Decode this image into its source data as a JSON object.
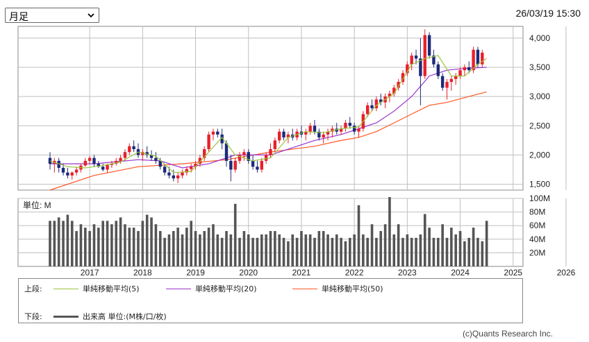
{
  "period_select": {
    "value": "月足",
    "options": [
      "月足"
    ]
  },
  "timestamp": "26/03/19 15:30",
  "copyright": "(c)Quants Research Inc.",
  "colors": {
    "up": "#e8202a",
    "down": "#1c2a7a",
    "ma5": "#9bc53d",
    "ma20": "#9932cc",
    "ma50": "#ff5522",
    "volume": "#555555",
    "grid": "#bfbfbf"
  },
  "legend": {
    "upper_label": "上段:",
    "lower_label": "下段:",
    "ma5": "単純移動平均(5)",
    "ma20": "単純移動平均(20)",
    "ma50": "単純移動平均(50)",
    "volume": "出来高 単位:(M株/口/枚)"
  },
  "chart_data": [
    {
      "type": "candlestick",
      "title": "",
      "x_tick_labels": [
        "2017",
        "2018",
        "2019",
        "2020",
        "2021",
        "2022",
        "2023",
        "2024",
        "2025",
        "2026"
      ],
      "y_tick_labels": [
        "4,000",
        "3,500",
        "3,000",
        "2,500",
        "2,000",
        "1,500"
      ],
      "ylim": [
        1400,
        4200
      ],
      "grid": true,
      "start": "2016-04",
      "ohlc": [
        [
          1950,
          2050,
          1750,
          1850
        ],
        [
          1850,
          1950,
          1700,
          1900
        ],
        [
          1900,
          1950,
          1700,
          1780
        ],
        [
          1780,
          1850,
          1650,
          1700
        ],
        [
          1700,
          1780,
          1600,
          1650
        ],
        [
          1650,
          1720,
          1580,
          1700
        ],
        [
          1700,
          1800,
          1650,
          1750
        ],
        [
          1750,
          1850,
          1700,
          1820
        ],
        [
          1820,
          1950,
          1800,
          1900
        ],
        [
          1900,
          1980,
          1850,
          1950
        ],
        [
          1950,
          2000,
          1800,
          1850
        ],
        [
          1850,
          1900,
          1780,
          1800
        ],
        [
          1800,
          1850,
          1720,
          1750
        ],
        [
          1750,
          1850,
          1700,
          1830
        ],
        [
          1830,
          1900,
          1780,
          1850
        ],
        [
          1850,
          1950,
          1820,
          1900
        ],
        [
          1900,
          2000,
          1850,
          1950
        ],
        [
          1950,
          2100,
          1900,
          2050
        ],
        [
          2050,
          2200,
          2000,
          2150
        ],
        [
          2150,
          2250,
          2050,
          2100
        ],
        [
          2100,
          2200,
          1950,
          2000
        ],
        [
          2000,
          2100,
          1900,
          2050
        ],
        [
          2050,
          2150,
          1950,
          2000
        ],
        [
          2000,
          2080,
          1900,
          1950
        ],
        [
          1950,
          2050,
          1850,
          1900
        ],
        [
          1900,
          1950,
          1750,
          1800
        ],
        [
          1800,
          1850,
          1650,
          1700
        ],
        [
          1700,
          1800,
          1600,
          1650
        ],
        [
          1650,
          1750,
          1550,
          1600
        ],
        [
          1600,
          1700,
          1520,
          1650
        ],
        [
          1650,
          1750,
          1600,
          1700
        ],
        [
          1700,
          1800,
          1650,
          1760
        ],
        [
          1760,
          1850,
          1700,
          1800
        ],
        [
          1800,
          1900,
          1750,
          1850
        ],
        [
          1850,
          2000,
          1800,
          1950
        ],
        [
          1950,
          2150,
          1900,
          2100
        ],
        [
          2100,
          2400,
          2050,
          2350
        ],
        [
          2350,
          2450,
          2250,
          2400
        ],
        [
          2400,
          2450,
          2300,
          2350
        ],
        [
          2350,
          2450,
          2100,
          2200
        ],
        [
          2200,
          2250,
          1800,
          1900
        ],
        [
          1900,
          2000,
          1550,
          1750
        ],
        [
          1750,
          1950,
          1700,
          1900
        ],
        [
          1900,
          2050,
          1850,
          2000
        ],
        [
          2000,
          2100,
          1900,
          2050
        ],
        [
          2050,
          2100,
          1850,
          1900
        ],
        [
          1900,
          2000,
          1750,
          1800
        ],
        [
          1800,
          1900,
          1700,
          1750
        ],
        [
          1750,
          1950,
          1700,
          1900
        ],
        [
          1900,
          2050,
          1850,
          2000
        ],
        [
          2000,
          2200,
          1950,
          2100
        ],
        [
          2100,
          2300,
          2050,
          2250
        ],
        [
          2250,
          2450,
          2200,
          2400
        ],
        [
          2400,
          2450,
          2250,
          2300
        ],
        [
          2300,
          2400,
          2200,
          2350
        ],
        [
          2350,
          2450,
          2250,
          2300
        ],
        [
          2300,
          2450,
          2250,
          2400
        ],
        [
          2400,
          2500,
          2300,
          2350
        ],
        [
          2350,
          2450,
          2250,
          2400
        ],
        [
          2400,
          2550,
          2350,
          2500
        ],
        [
          2500,
          2600,
          2350,
          2400
        ],
        [
          2400,
          2450,
          2250,
          2300
        ],
        [
          2300,
          2400,
          2200,
          2350
        ],
        [
          2350,
          2450,
          2250,
          2400
        ],
        [
          2400,
          2500,
          2300,
          2450
        ],
        [
          2450,
          2550,
          2350,
          2400
        ],
        [
          2400,
          2500,
          2350,
          2450
        ],
        [
          2450,
          2600,
          2400,
          2550
        ],
        [
          2550,
          2650,
          2450,
          2500
        ],
        [
          2500,
          2550,
          2350,
          2400
        ],
        [
          2400,
          2500,
          2300,
          2450
        ],
        [
          2450,
          2750,
          2400,
          2700
        ],
        [
          2700,
          2900,
          2650,
          2850
        ],
        [
          2850,
          2950,
          2750,
          2800
        ],
        [
          2800,
          3000,
          2750,
          2950
        ],
        [
          2950,
          3050,
          2850,
          2900
        ],
        [
          2900,
          3050,
          2800,
          3000
        ],
        [
          3000,
          3100,
          2900,
          3050
        ],
        [
          3050,
          3200,
          3000,
          3150
        ],
        [
          3150,
          3300,
          3100,
          3250
        ],
        [
          3250,
          3450,
          3200,
          3400
        ],
        [
          3400,
          3600,
          3350,
          3550
        ],
        [
          3550,
          3750,
          3450,
          3700
        ],
        [
          3700,
          3800,
          3550,
          3650
        ],
        [
          3650,
          4000,
          2850,
          3350
        ],
        [
          3350,
          4150,
          3300,
          4050
        ],
        [
          4050,
          4100,
          3650,
          3700
        ],
        [
          3700,
          3800,
          3500,
          3550
        ],
        [
          3550,
          3600,
          3300,
          3350
        ],
        [
          3350,
          3400,
          3100,
          3150
        ],
        [
          3150,
          3300,
          2950,
          3250
        ],
        [
          3250,
          3350,
          3100,
          3300
        ],
        [
          3300,
          3400,
          3200,
          3350
        ],
        [
          3350,
          3500,
          3300,
          3450
        ],
        [
          3450,
          3550,
          3350,
          3500
        ],
        [
          3500,
          3600,
          3400,
          3450
        ],
        [
          3450,
          3850,
          3400,
          3800
        ],
        [
          3800,
          3850,
          3500,
          3550
        ],
        [
          3550,
          3800,
          3500,
          3750
        ]
      ],
      "ma5": [
        [
          0,
          1900
        ],
        [
          4,
          1800
        ],
        [
          8,
          1780
        ],
        [
          12,
          1820
        ],
        [
          16,
          1880
        ],
        [
          20,
          2050
        ],
        [
          24,
          1980
        ],
        [
          28,
          1700
        ],
        [
          32,
          1720
        ],
        [
          36,
          2050
        ],
        [
          39,
          2300
        ],
        [
          42,
          2000
        ],
        [
          46,
          1900
        ],
        [
          50,
          1950
        ],
        [
          54,
          2300
        ],
        [
          58,
          2400
        ],
        [
          62,
          2380
        ],
        [
          66,
          2450
        ],
        [
          70,
          2480
        ],
        [
          74,
          2850
        ],
        [
          78,
          3050
        ],
        [
          82,
          3550
        ],
        [
          85,
          3650
        ],
        [
          88,
          3700
        ],
        [
          91,
          3350
        ],
        [
          94,
          3350
        ],
        [
          97,
          3550
        ],
        [
          99,
          3650
        ]
      ],
      "ma20": [
        [
          0,
          1850
        ],
        [
          10,
          1850
        ],
        [
          20,
          1920
        ],
        [
          25,
          1900
        ],
        [
          30,
          1780
        ],
        [
          36,
          1850
        ],
        [
          42,
          2000
        ],
        [
          50,
          2000
        ],
        [
          56,
          2150
        ],
        [
          60,
          2250
        ],
        [
          66,
          2350
        ],
        [
          70,
          2450
        ],
        [
          74,
          2550
        ],
        [
          78,
          2750
        ],
        [
          82,
          3000
        ],
        [
          86,
          3350
        ],
        [
          90,
          3450
        ],
        [
          94,
          3480
        ],
        [
          99,
          3500
        ]
      ],
      "ma50": [
        [
          0,
          1400
        ],
        [
          10,
          1650
        ],
        [
          20,
          1800
        ],
        [
          30,
          1850
        ],
        [
          40,
          1920
        ],
        [
          50,
          2050
        ],
        [
          60,
          2150
        ],
        [
          66,
          2250
        ],
        [
          70,
          2300
        ],
        [
          74,
          2400
        ],
        [
          78,
          2550
        ],
        [
          82,
          2700
        ],
        [
          86,
          2850
        ],
        [
          90,
          2900
        ],
        [
          95,
          3000
        ],
        [
          99,
          3080
        ]
      ]
    },
    {
      "type": "bar",
      "title": "",
      "unit_label": "単位: M",
      "y_tick_labels": [
        "100M",
        "80M",
        "60M",
        "40M",
        "20M"
      ],
      "ylim": [
        0,
        100
      ],
      "values": [
        67,
        67,
        72,
        67,
        76,
        67,
        52,
        62,
        57,
        52,
        62,
        57,
        67,
        67,
        62,
        67,
        72,
        62,
        57,
        57,
        52,
        67,
        76,
        72,
        62,
        52,
        42,
        47,
        52,
        57,
        47,
        57,
        67,
        52,
        47,
        52,
        57,
        62,
        47,
        42,
        52,
        47,
        92,
        42,
        52,
        47,
        42,
        42,
        47,
        47,
        52,
        52,
        47,
        42,
        37,
        47,
        42,
        52,
        47,
        47,
        42,
        52,
        52,
        47,
        42,
        47,
        42,
        37,
        42,
        47,
        90,
        47,
        42,
        62,
        42,
        52,
        62,
        102,
        47,
        62,
        42,
        47,
        42,
        42,
        47,
        77,
        57,
        42,
        42,
        62,
        42,
        57,
        47,
        52,
        37,
        42,
        57,
        42,
        37,
        67
      ]
    }
  ]
}
